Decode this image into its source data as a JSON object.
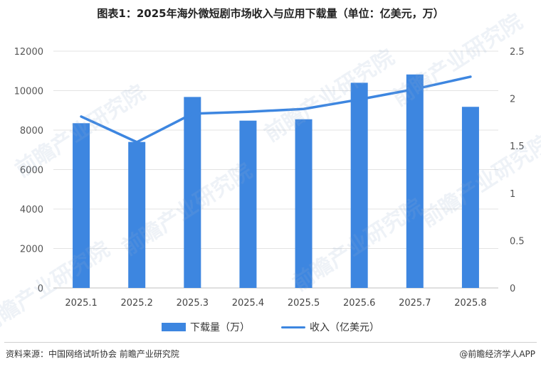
{
  "title": "图表1：2025年海外微短剧市场收入与应用下载量（单位：亿美元，万）",
  "chart_data": {
    "type": "bar",
    "categories": [
      "2025.1",
      "2025.2",
      "2025.3",
      "2025.4",
      "2025.5",
      "2025.6",
      "2025.7",
      "2025.8"
    ],
    "series": [
      {
        "name": "下载量（万）",
        "type": "bar",
        "axis": "left",
        "values": [
          8350,
          7400,
          9680,
          8480,
          8550,
          10400,
          10820,
          9180
        ]
      },
      {
        "name": "收入（亿美元）",
        "type": "line",
        "axis": "right",
        "values": [
          1.81,
          1.54,
          1.84,
          1.86,
          1.89,
          1.99,
          2.1,
          2.23
        ]
      }
    ],
    "y_left": {
      "min": 0,
      "max": 12000,
      "ticks": [
        0,
        2000,
        4000,
        6000,
        8000,
        10000,
        12000
      ]
    },
    "y_right": {
      "min": 0,
      "max": 2.5,
      "ticks": [
        "0",
        "0.5",
        "1",
        "1.5",
        "2",
        "2.5"
      ]
    },
    "grid": true,
    "legend_position": "bottom",
    "colors": {
      "bar": "#3d86e0",
      "line": "#3d86e0"
    }
  },
  "legend": {
    "bar_label": "下载量（万）",
    "line_label": "收入（亿美元）"
  },
  "footer": {
    "source": "资料来源：中国网络试听协会  前瞻产业研究院",
    "brand": "@前瞻经济学人APP"
  },
  "watermark": "前瞻产业研究院"
}
